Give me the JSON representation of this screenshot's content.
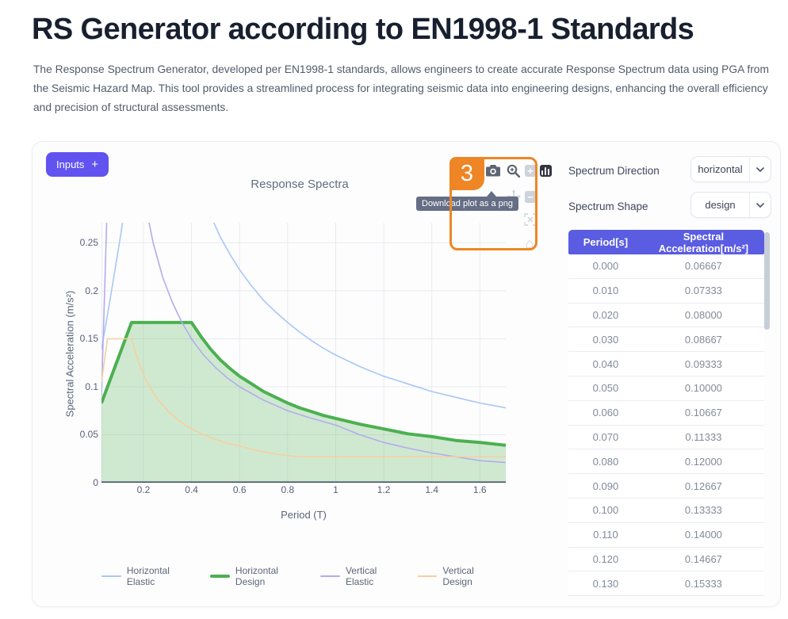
{
  "page": {
    "title": "RS Generator according to EN1998-1 Standards",
    "description": "The Response Spectrum Generator, developed per EN1998-1 standards, allows engineers to create accurate Response Spectrum data using PGA from the Seismic Hazard Map. This tool provides a streamlined process for integrating seismic data into engineering designs, enhancing the overall efficiency and precision of structural assessments."
  },
  "inputs_button": {
    "label": "Inputs",
    "plus": "+"
  },
  "annotation": {
    "number": "3",
    "color": "#ee8625"
  },
  "tooltip": {
    "text": "Download plot as a png"
  },
  "modebar": {
    "buttons": [
      "camera-icon",
      "box-zoom-icon",
      "zoom-in-icon",
      "plotly-logo-icon",
      "pan-icon",
      "zoom-out-icon",
      "autoscale-icon",
      "home-icon"
    ]
  },
  "controls": {
    "direction": {
      "label": "Spectrum Direction",
      "value": "horizontal"
    },
    "shape": {
      "label": "Spectrum Shape",
      "value": "design"
    }
  },
  "table": {
    "headers": [
      "Period[s]",
      "Spectral Acceleration[m/s²]"
    ],
    "rows": [
      [
        "0.000",
        "0.06667"
      ],
      [
        "0.010",
        "0.07333"
      ],
      [
        "0.020",
        "0.08000"
      ],
      [
        "0.030",
        "0.08667"
      ],
      [
        "0.040",
        "0.09333"
      ],
      [
        "0.050",
        "0.10000"
      ],
      [
        "0.060",
        "0.10667"
      ],
      [
        "0.070",
        "0.11333"
      ],
      [
        "0.080",
        "0.12000"
      ],
      [
        "0.090",
        "0.12667"
      ],
      [
        "0.100",
        "0.13333"
      ],
      [
        "0.110",
        "0.14000"
      ],
      [
        "0.120",
        "0.14667"
      ],
      [
        "0.130",
        "0.15333"
      ]
    ]
  },
  "colors": {
    "accent": "#6153f0",
    "table_header": "#5a5ce1",
    "annotation_orange": "#ee8625",
    "tooltip_bg": "#656e85",
    "grid": "#e9ebef",
    "axis": "#3d4859"
  },
  "chart_data": {
    "type": "line",
    "title": "Response Spectra",
    "xlabel": "Period (T)",
    "ylabel": "Spectral Acceleration (m/s²)",
    "x_range": [
      0.025,
      1.708
    ],
    "y_range": [
      0,
      0.271
    ],
    "x_ticks": [
      0.2,
      0.4,
      0.6,
      0.8,
      1,
      1.2,
      1.4,
      1.6
    ],
    "y_ticks": [
      0,
      0.05,
      0.1,
      0.15,
      0.2,
      0.25
    ],
    "grid": true,
    "legend_position": "bottom",
    "series": [
      {
        "name": "Horizontal Elastic",
        "color": "#a9c6f7",
        "width": 1.6,
        "fill": null,
        "points": [
          [
            0.025,
            0.139
          ],
          [
            0.05,
            0.175
          ],
          [
            0.08,
            0.22
          ],
          [
            0.105,
            0.258
          ],
          [
            0.15,
            0.333
          ],
          [
            0.4,
            0.333
          ],
          [
            0.44,
            0.303
          ],
          [
            0.48,
            0.278
          ],
          [
            0.52,
            0.256
          ],
          [
            0.56,
            0.238
          ],
          [
            0.6,
            0.222
          ],
          [
            0.65,
            0.205
          ],
          [
            0.7,
            0.19
          ],
          [
            0.75,
            0.178
          ],
          [
            0.8,
            0.167
          ],
          [
            0.85,
            0.157
          ],
          [
            0.9,
            0.148
          ],
          [
            0.95,
            0.14
          ],
          [
            1,
            0.133
          ],
          [
            1.1,
            0.121
          ],
          [
            1.2,
            0.111
          ],
          [
            1.3,
            0.103
          ],
          [
            1.4,
            0.095
          ],
          [
            1.5,
            0.089
          ],
          [
            1.6,
            0.083
          ],
          [
            1.708,
            0.078
          ]
        ]
      },
      {
        "name": "Horizontal Design",
        "color": "#4cb050",
        "width": 4,
        "fill": "rgba(76,176,80,0.26)",
        "points": [
          [
            0.025,
            0.083
          ],
          [
            0.15,
            0.167
          ],
          [
            0.4,
            0.167
          ],
          [
            0.44,
            0.152
          ],
          [
            0.48,
            0.139
          ],
          [
            0.52,
            0.128
          ],
          [
            0.56,
            0.119
          ],
          [
            0.6,
            0.111
          ],
          [
            0.65,
            0.103
          ],
          [
            0.7,
            0.095
          ],
          [
            0.75,
            0.089
          ],
          [
            0.8,
            0.083
          ],
          [
            0.85,
            0.078
          ],
          [
            0.9,
            0.074
          ],
          [
            0.95,
            0.07
          ],
          [
            1,
            0.067
          ],
          [
            1.1,
            0.061
          ],
          [
            1.2,
            0.056
          ],
          [
            1.3,
            0.051
          ],
          [
            1.4,
            0.048
          ],
          [
            1.5,
            0.044
          ],
          [
            1.6,
            0.042
          ],
          [
            1.708,
            0.039
          ]
        ]
      },
      {
        "name": "Vertical Elastic",
        "color": "#b5abec",
        "width": 1.6,
        "fill": null,
        "points": [
          [
            0.025,
            0.09
          ],
          [
            0.05,
            0.3
          ],
          [
            0.2,
            0.3
          ],
          [
            0.24,
            0.25
          ],
          [
            0.28,
            0.214
          ],
          [
            0.32,
            0.188
          ],
          [
            0.36,
            0.167
          ],
          [
            0.4,
            0.15
          ],
          [
            0.45,
            0.133
          ],
          [
            0.5,
            0.12
          ],
          [
            0.55,
            0.109
          ],
          [
            0.6,
            0.1
          ],
          [
            0.7,
            0.086
          ],
          [
            0.8,
            0.075
          ],
          [
            0.9,
            0.067
          ],
          [
            1,
            0.06
          ],
          [
            1.1,
            0.05
          ],
          [
            1.2,
            0.042
          ],
          [
            1.3,
            0.036
          ],
          [
            1.4,
            0.031
          ],
          [
            1.5,
            0.027
          ],
          [
            1.6,
            0.023
          ],
          [
            1.708,
            0.021
          ]
        ]
      },
      {
        "name": "Vertical Design",
        "color": "#f6cf9d",
        "width": 1.6,
        "fill": null,
        "points": [
          [
            0.025,
            0.105
          ],
          [
            0.05,
            0.15
          ],
          [
            0.15,
            0.15
          ],
          [
            0.18,
            0.125
          ],
          [
            0.21,
            0.107
          ],
          [
            0.25,
            0.09
          ],
          [
            0.3,
            0.075
          ],
          [
            0.35,
            0.064
          ],
          [
            0.4,
            0.056
          ],
          [
            0.45,
            0.05
          ],
          [
            0.5,
            0.045
          ],
          [
            0.55,
            0.041
          ],
          [
            0.6,
            0.038
          ],
          [
            0.65,
            0.035
          ],
          [
            0.7,
            0.032
          ],
          [
            0.75,
            0.03
          ],
          [
            0.8,
            0.028
          ],
          [
            0.85,
            0.027
          ],
          [
            1,
            0.027
          ],
          [
            1.2,
            0.027
          ],
          [
            1.4,
            0.027
          ],
          [
            1.708,
            0.027
          ]
        ]
      }
    ]
  }
}
